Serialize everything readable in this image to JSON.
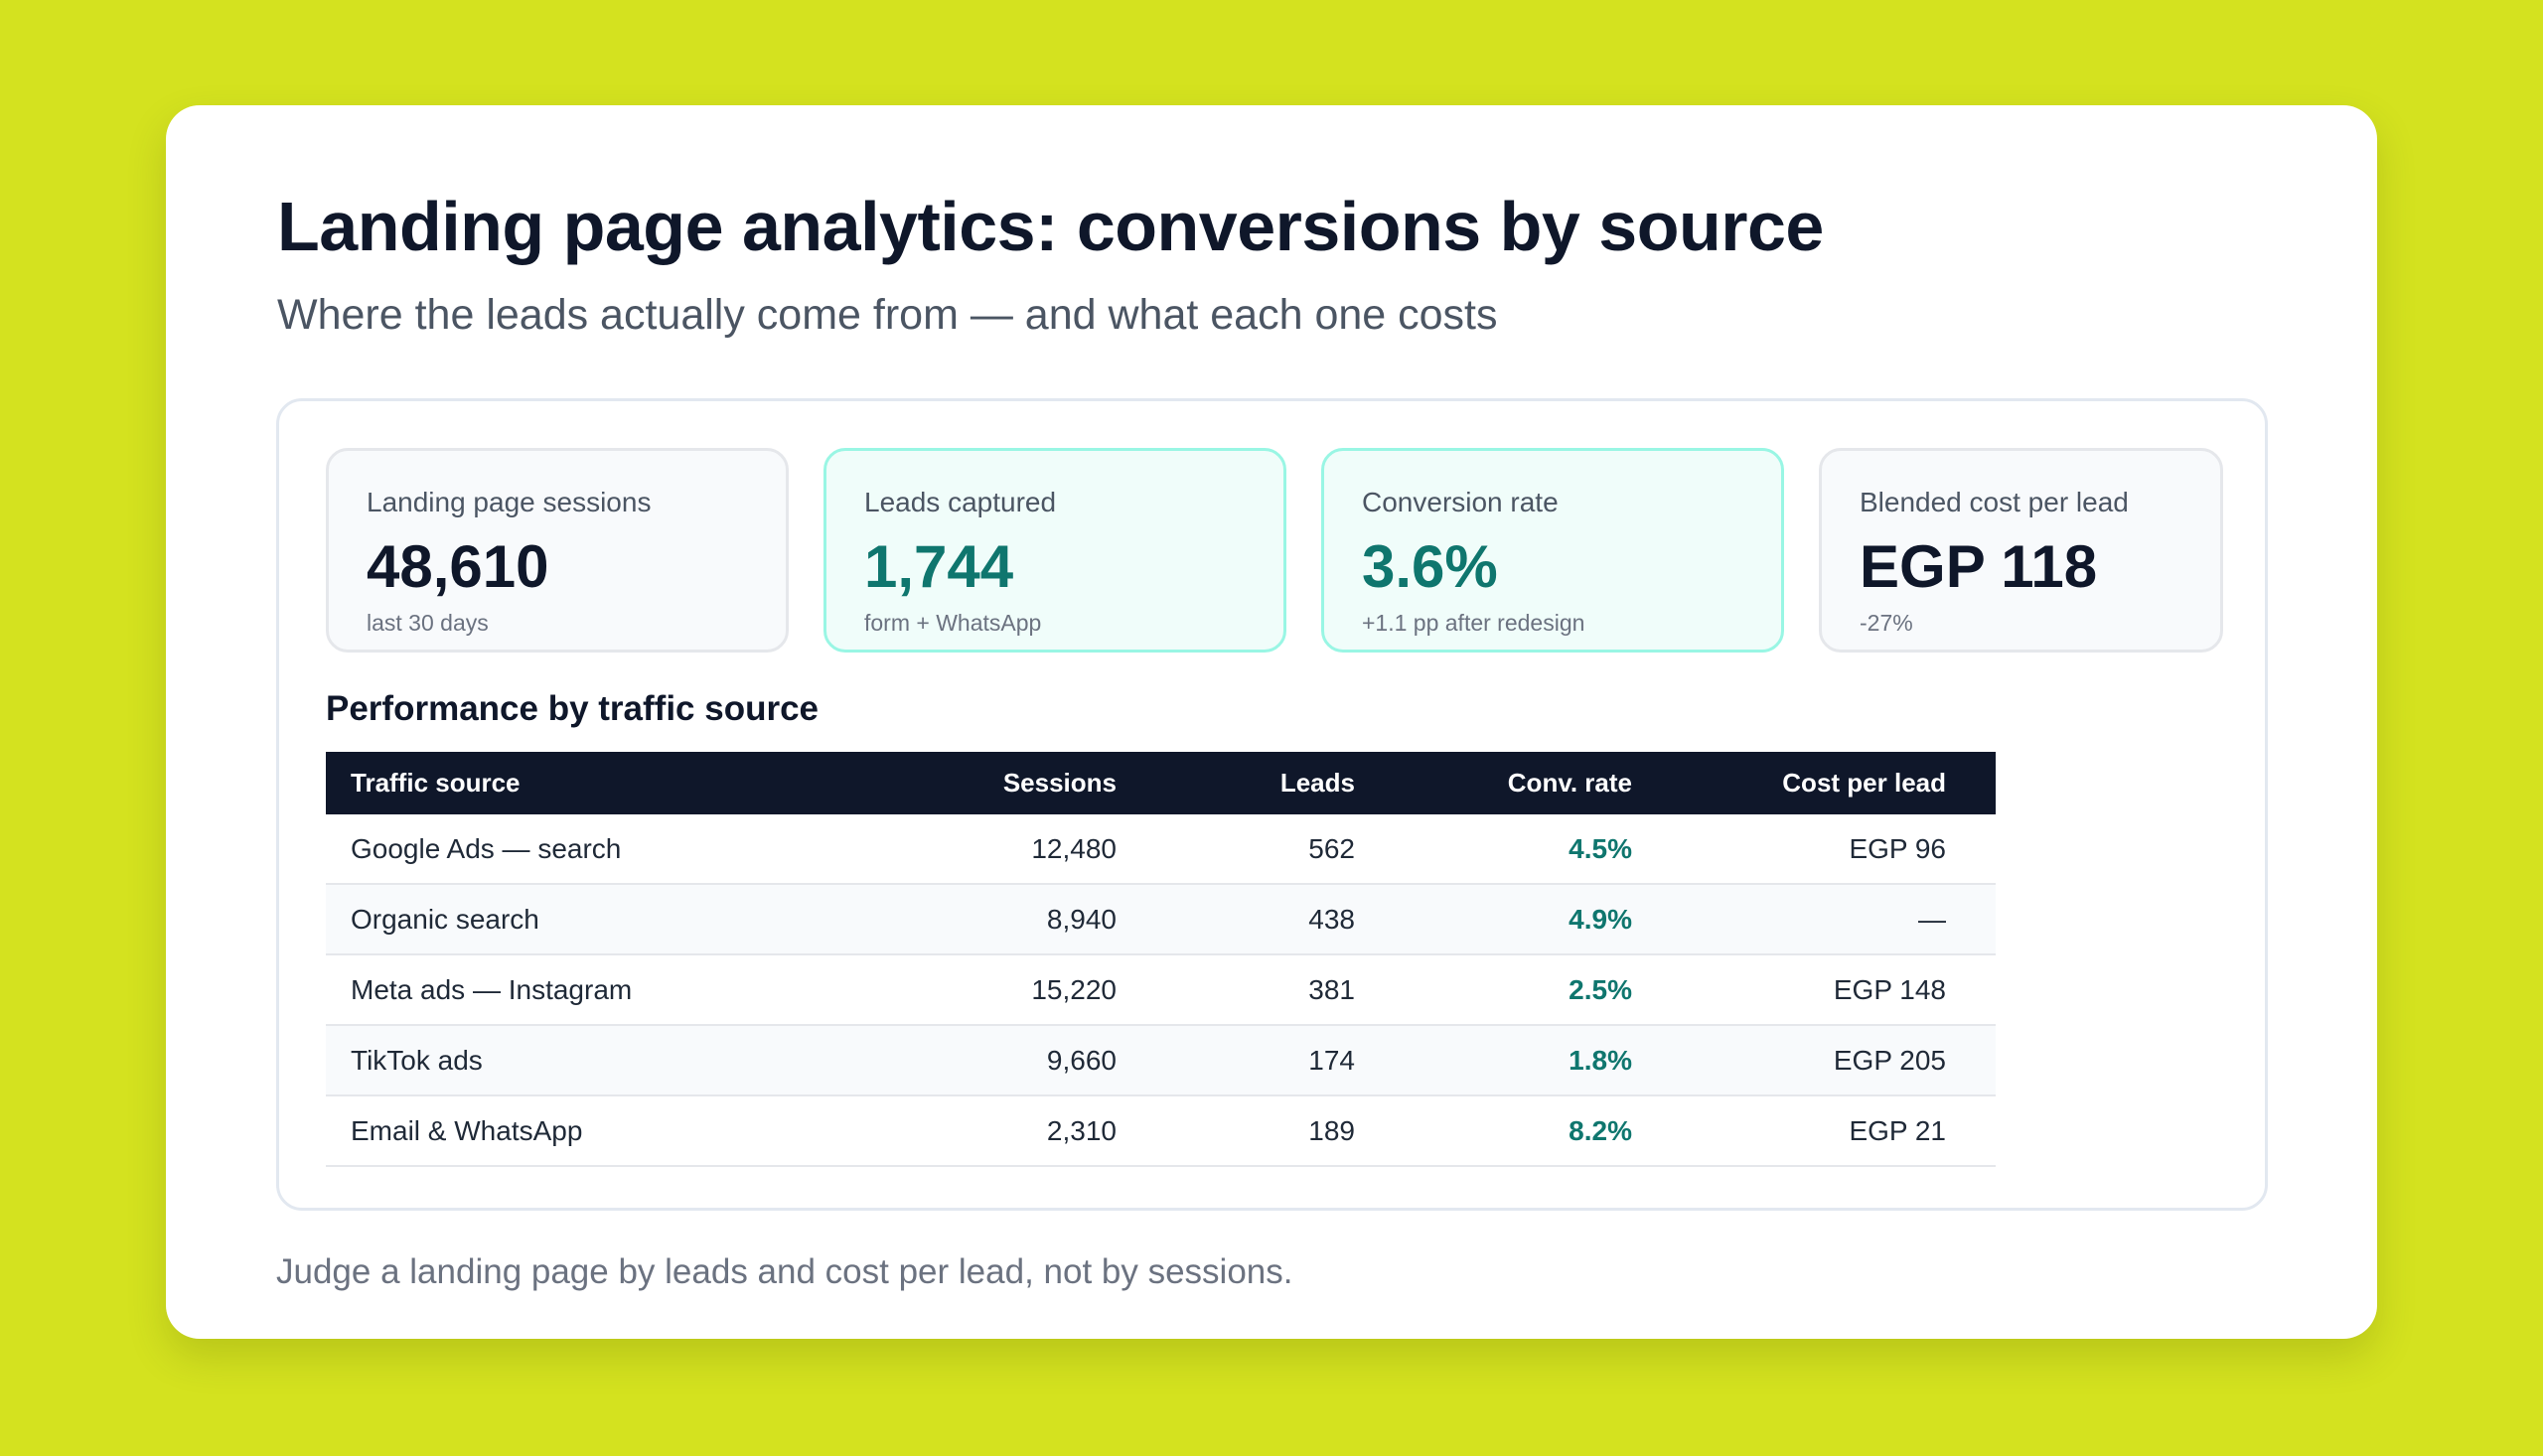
{
  "header": {
    "title": "Landing page analytics: conversions by source",
    "subtitle": "Where the leads actually come from — and what each one costs"
  },
  "kpis": [
    {
      "label": "Landing page sessions",
      "value": "48,610",
      "note": "last 30 days"
    },
    {
      "label": "Leads captured",
      "value": "1,744",
      "note": "form + WhatsApp"
    },
    {
      "label": "Conversion rate",
      "value": "3.6%",
      "note": "+1.1 pp after redesign"
    },
    {
      "label": "Blended cost per lead",
      "value": "EGP 118",
      "note": "-27%"
    }
  ],
  "table": {
    "title": "Performance by traffic source",
    "columns": [
      "Traffic source",
      "Sessions",
      "Leads",
      "Conv. rate",
      "Cost per lead"
    ],
    "rows": [
      [
        "Google Ads — search",
        "12,480",
        "562",
        "4.5%",
        "EGP 96"
      ],
      [
        "Organic search",
        "8,940",
        "438",
        "4.9%",
        "—"
      ],
      [
        "Meta ads — Instagram",
        "15,220",
        "381",
        "2.5%",
        "EGP 148"
      ],
      [
        "TikTok ads",
        "9,660",
        "174",
        "1.8%",
        "EGP 205"
      ],
      [
        "Email & WhatsApp",
        "2,310",
        "189",
        "8.2%",
        "EGP 21"
      ]
    ]
  },
  "footnote": "Judge a landing page by leads and cost per lead, not by sessions.",
  "colors": {
    "background": "#d4e21f",
    "card": "#ffffff",
    "accent": "#0f766e",
    "header_row": "#0f172a"
  }
}
